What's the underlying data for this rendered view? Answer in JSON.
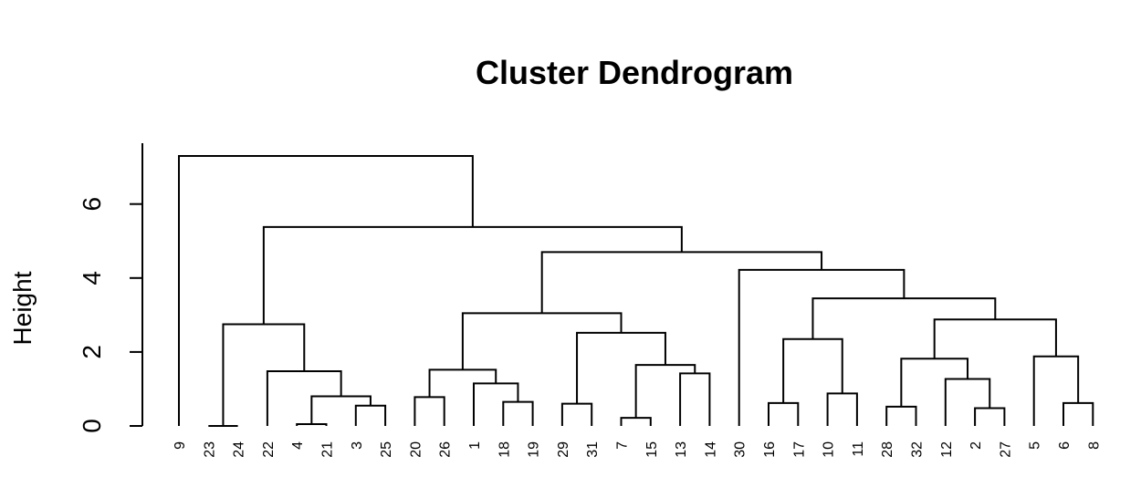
{
  "chart_data": {
    "type": "dendrogram",
    "title": "Cluster Dendrogram",
    "xlabel": "",
    "ylabel": "Height",
    "ylim": [
      0,
      7.3
    ],
    "yticks": [
      0,
      2,
      4,
      6
    ],
    "leaves": [
      "9",
      "23",
      "24",
      "22",
      "4",
      "21",
      "3",
      "25",
      "20",
      "26",
      "1",
      "18",
      "19",
      "29",
      "31",
      "7",
      "15",
      "13",
      "14",
      "30",
      "16",
      "17",
      "10",
      "11",
      "28",
      "32",
      "12",
      "2",
      "27",
      "5",
      "6",
      "8"
    ],
    "merges": [
      {
        "left": "23",
        "right": "24",
        "height": 0.0
      },
      {
        "left": "4",
        "right": "21",
        "height": 0.05
      },
      {
        "left": "3",
        "right": "25",
        "height": 0.55
      },
      {
        "left": "(4,21)",
        "right": "(3,25)",
        "height": 0.8
      },
      {
        "left": "22",
        "right": "(4,21,3,25)",
        "height": 1.48
      },
      {
        "left": "(23,24)",
        "right": "(22,4,21,3,25)",
        "height": 2.75
      },
      {
        "left": "20",
        "right": "26",
        "height": 0.78
      },
      {
        "left": "18",
        "right": "19",
        "height": 0.65
      },
      {
        "left": "1",
        "right": "(18,19)",
        "height": 1.15
      },
      {
        "left": "(20,26)",
        "right": "(1,18,19)",
        "height": 1.52
      },
      {
        "left": "29",
        "right": "31",
        "height": 0.6
      },
      {
        "left": "7",
        "right": "15",
        "height": 0.22
      },
      {
        "left": "13",
        "right": "14",
        "height": 1.42
      },
      {
        "left": "(7,15)",
        "right": "(13,14)",
        "height": 1.65
      },
      {
        "left": "(29,31)",
        "right": "(7,15,13,14)",
        "height": 2.52
      },
      {
        "left": "(20,26,1,18,19)",
        "right": "(29,31,7,15,13,14)",
        "height": 3.05
      },
      {
        "left": "16",
        "right": "17",
        "height": 0.62
      },
      {
        "left": "10",
        "right": "11",
        "height": 0.88
      },
      {
        "left": "(16,17)",
        "right": "(10,11)",
        "height": 2.35
      },
      {
        "left": "28",
        "right": "32",
        "height": 0.52
      },
      {
        "left": "2",
        "right": "27",
        "height": 0.48
      },
      {
        "left": "12",
        "right": "(2,27)",
        "height": 1.27
      },
      {
        "left": "(28,32)",
        "right": "(12,2,27)",
        "height": 1.82
      },
      {
        "left": "6",
        "right": "8",
        "height": 0.62
      },
      {
        "left": "5",
        "right": "(6,8)",
        "height": 1.88
      },
      {
        "left": "(28,32,12,2,27)",
        "right": "(5,6,8)",
        "height": 2.88
      },
      {
        "left": "(16,17,10,11)",
        "right": "(28,32,12,2,27,5,6,8)",
        "height": 3.45
      },
      {
        "left": "30",
        "right": "(16,17,10,11,28,32,12,2,27,5,6,8)",
        "height": 4.22
      },
      {
        "left": "(20,...,14)",
        "right": "(30,...,8)",
        "height": 4.7
      },
      {
        "left": "(23,24,22,4,21,3,25)",
        "right": "(20,...,8)",
        "height": 5.38
      },
      {
        "left": "9",
        "right": "(rest)",
        "height": 7.3
      }
    ]
  }
}
